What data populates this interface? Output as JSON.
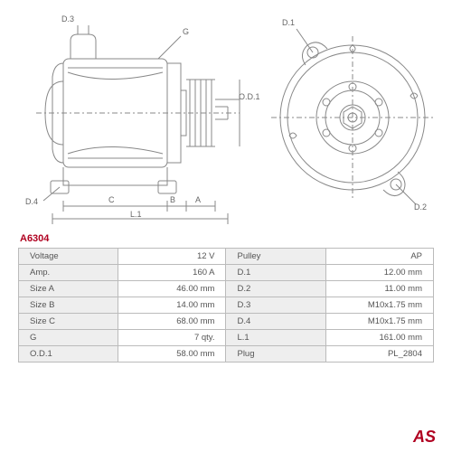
{
  "part_number": "A6304",
  "logo_text": "AS",
  "part_color": "#b00020",
  "line_color": "#888888",
  "dim_labels_left": {
    "d3": "D.3",
    "g": "G",
    "d4": "D.4",
    "c": "C",
    "b": "B",
    "a": "A",
    "l1": "L.1",
    "od1": "O.D.1"
  },
  "dim_labels_right": {
    "d1": "D.1",
    "d2": "D.2"
  },
  "spec_rows": [
    {
      "l1": "Voltage",
      "v1": "12 V",
      "l2": "Pulley",
      "v2": "AP"
    },
    {
      "l1": "Amp.",
      "v1": "160 A",
      "l2": "D.1",
      "v2": "12.00 mm"
    },
    {
      "l1": "Size A",
      "v1": "46.00 mm",
      "l2": "D.2",
      "v2": "11.00 mm"
    },
    {
      "l1": "Size B",
      "v1": "14.00 mm",
      "l2": "D.3",
      "v2": "M10x1.75 mm"
    },
    {
      "l1": "Size C",
      "v1": "68.00 mm",
      "l2": "D.4",
      "v2": "M10x1.75 mm"
    },
    {
      "l1": "G",
      "v1": "7 qty.",
      "l2": "L.1",
      "v2": "161.00 mm"
    },
    {
      "l1": "O.D.1",
      "v1": "58.00 mm",
      "l2": "Plug",
      "v2": "PL_2804"
    }
  ],
  "table_style": {
    "label_bg": "#eeeeee",
    "value_bg": "#ffffff",
    "border_color": "#bbbbbb",
    "font_size": 9.5,
    "text_color": "#555555"
  }
}
